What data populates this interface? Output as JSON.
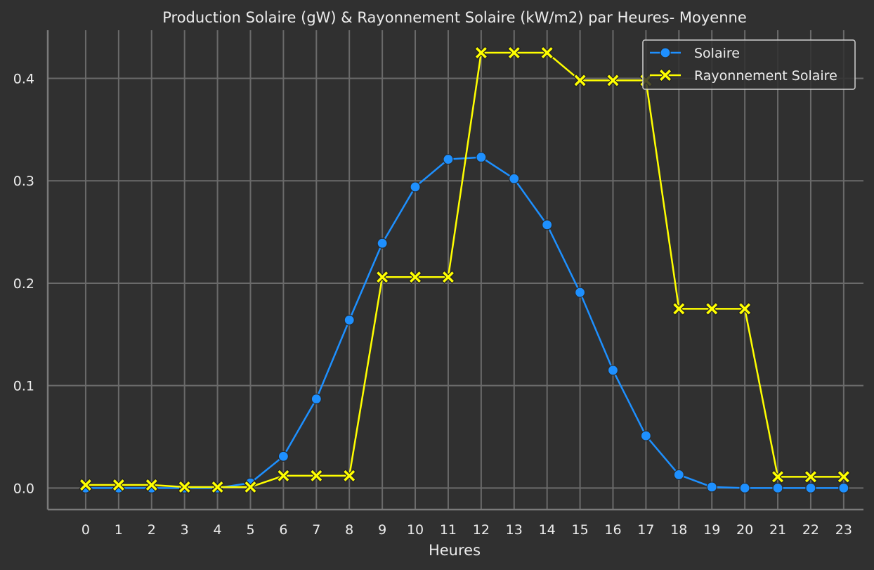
{
  "chart_data": {
    "type": "line",
    "title": "Production Solaire (gW) & Rayonnement Solaire (kW/m2) par Heures- Moyenne",
    "xlabel": "Heures",
    "ylabel": "",
    "x": [
      0,
      1,
      2,
      3,
      4,
      5,
      6,
      7,
      8,
      9,
      10,
      11,
      12,
      13,
      14,
      15,
      16,
      17,
      18,
      19,
      20,
      21,
      22,
      23
    ],
    "x_tick_labels": [
      "0",
      "1",
      "2",
      "3",
      "4",
      "5",
      "6",
      "7",
      "8",
      "9",
      "10",
      "11",
      "12",
      "13",
      "14",
      "15",
      "16",
      "17",
      "18",
      "19",
      "20",
      "21",
      "22",
      "23"
    ],
    "y_ticks": [
      0.0,
      0.1,
      0.2,
      0.3,
      0.4
    ],
    "y_tick_labels": [
      "0.0",
      "0.1",
      "0.2",
      "0.3",
      "0.4"
    ],
    "ylim": [
      -0.021,
      0.447
    ],
    "xlim": [
      -1.15,
      23.6
    ],
    "grid": true,
    "legend_position": "top-right",
    "series": [
      {
        "name": "Solaire",
        "color": "#1E90FF",
        "marker": "circle",
        "values": [
          0.0,
          0.0,
          0.0,
          0.0,
          0.0,
          0.005,
          0.031,
          0.087,
          0.164,
          0.239,
          0.294,
          0.321,
          0.323,
          0.302,
          0.257,
          0.191,
          0.115,
          0.051,
          0.013,
          0.001,
          0.0,
          0.0,
          0.0,
          0.0
        ]
      },
      {
        "name": "Rayonnement Solaire",
        "color": "#FFFF00",
        "marker": "x",
        "values": [
          0.003,
          0.003,
          0.003,
          0.001,
          0.001,
          0.001,
          0.012,
          0.012,
          0.012,
          0.206,
          0.206,
          0.206,
          0.425,
          0.425,
          0.425,
          0.398,
          0.398,
          0.398,
          0.175,
          0.175,
          0.175,
          0.011,
          0.011,
          0.011
        ]
      }
    ]
  }
}
